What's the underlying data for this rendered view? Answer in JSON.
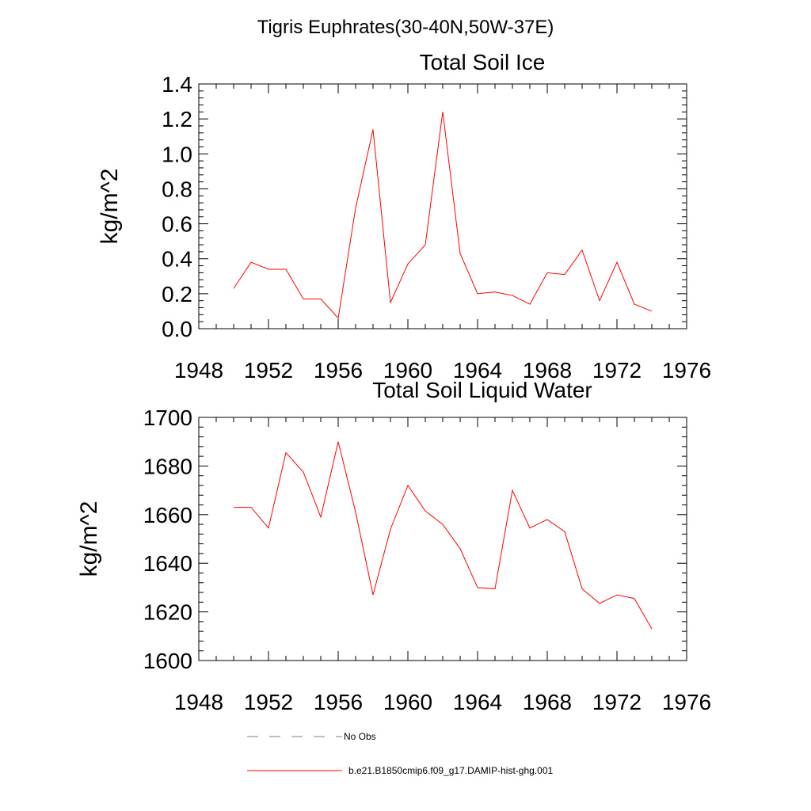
{
  "suptitle": "Tigris Euphrates(30-40N,50W-37E)",
  "chart_data": [
    {
      "type": "line",
      "title": "Total Soil Ice",
      "xlabel": "",
      "ylabel": "kg/m^2",
      "xlim": [
        1948,
        1976
      ],
      "ylim": [
        0,
        1.4
      ],
      "xticks": [
        "1948",
        "1952",
        "1956",
        "1960",
        "1964",
        "1968",
        "1972",
        "1976"
      ],
      "yticks": [
        "0.0",
        "0.2",
        "0.4",
        "0.6",
        "0.8",
        "1.0",
        "1.2",
        "1.4"
      ],
      "x": [
        1950,
        1951,
        1952,
        1953,
        1954,
        1955,
        1956,
        1957,
        1958,
        1959,
        1960,
        1961,
        1962,
        1963,
        1964,
        1965,
        1966,
        1967,
        1968,
        1969,
        1970,
        1971,
        1972,
        1973,
        1974
      ],
      "series": [
        {
          "name": "b.e21.B1850cmip6.f09_g17.DAMIP-hist-ghg.001",
          "color": "#ff0000",
          "values": [
            0.23,
            0.38,
            0.34,
            0.34,
            0.17,
            0.17,
            0.06,
            0.69,
            1.14,
            0.15,
            0.37,
            0.48,
            1.24,
            0.43,
            0.2,
            0.21,
            0.19,
            0.14,
            0.32,
            0.31,
            0.45,
            0.16,
            0.38,
            0.14,
            0.1
          ]
        }
      ]
    },
    {
      "type": "line",
      "title": "Total Soil Liquid Water",
      "xlabel": "",
      "ylabel": "kg/m^2",
      "xlim": [
        1948,
        1976
      ],
      "ylim": [
        1600,
        1700
      ],
      "xticks": [
        "1948",
        "1952",
        "1956",
        "1960",
        "1964",
        "1968",
        "1972",
        "1976"
      ],
      "yticks": [
        "1600",
        "1620",
        "1640",
        "1660",
        "1680",
        "1700"
      ],
      "x": [
        1950,
        1951,
        1952,
        1953,
        1954,
        1955,
        1956,
        1957,
        1958,
        1959,
        1960,
        1961,
        1962,
        1963,
        1964,
        1965,
        1966,
        1967,
        1968,
        1969,
        1970,
        1971,
        1972,
        1973,
        1974
      ],
      "series": [
        {
          "name": "b.e21.B1850cmip6.f09_g17.DAMIP-hist-ghg.001",
          "color": "#ff0000",
          "values": [
            1663,
            1663,
            1654.5,
            1685.5,
            1677.5,
            1659,
            1690,
            1661,
            1627,
            1654,
            1672,
            1661.5,
            1656,
            1646,
            1630,
            1629.5,
            1670,
            1654.5,
            1658,
            1653,
            1629.5,
            1623.5,
            1627,
            1625.5,
            1613
          ]
        }
      ]
    }
  ],
  "legend": [
    {
      "label": "No Obs",
      "style": "dashed",
      "color": "#7a7aa0"
    },
    {
      "label": "b.e21.B1850cmip6.f09_g17.DAMIP-hist-ghg.001",
      "style": "solid",
      "color": "#ff0000"
    }
  ]
}
